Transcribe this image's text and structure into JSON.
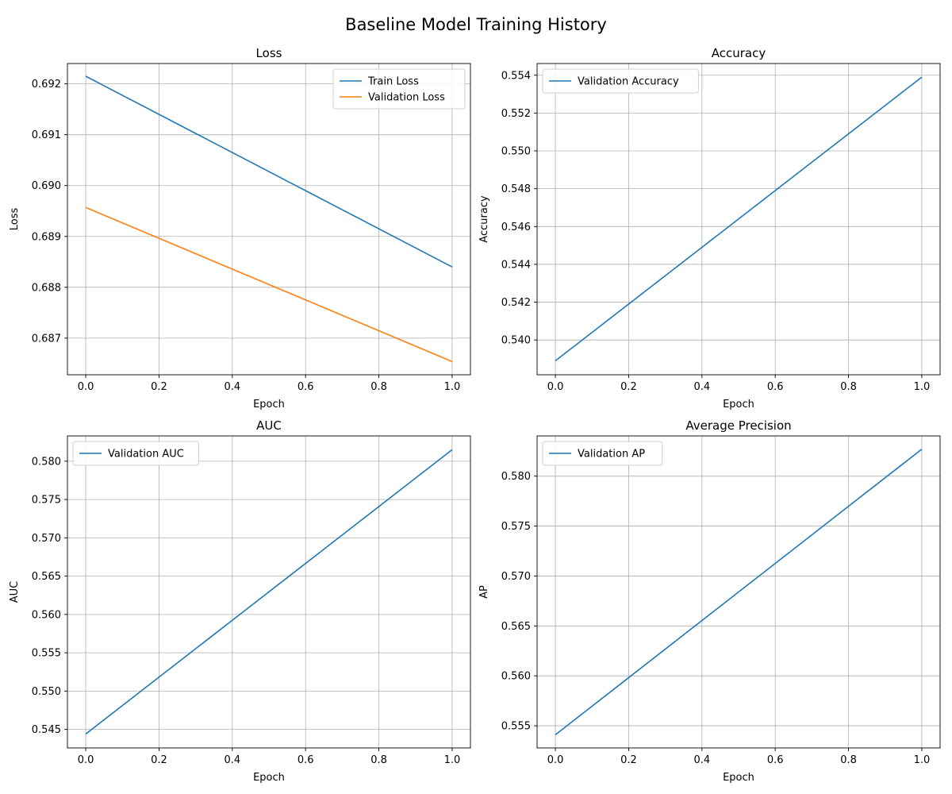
{
  "figure": {
    "suptitle": "Baseline Model Training History"
  },
  "chart_data": [
    {
      "type": "line",
      "title": "Loss",
      "xlabel": "Epoch",
      "ylabel": "Loss",
      "x": [
        0,
        1
      ],
      "xlim": [
        -0.05,
        1.05
      ],
      "ylim": [
        0.68628,
        0.6924
      ],
      "xticks": [
        "0.0",
        "0.2",
        "0.4",
        "0.6",
        "0.8",
        "1.0"
      ],
      "yticks": [
        "0.687",
        "0.688",
        "0.689",
        "0.690",
        "0.691",
        "0.692"
      ],
      "grid": true,
      "legend_position": "upper right",
      "series": [
        {
          "name": "Train Loss",
          "values": [
            0.69215,
            0.6884
          ],
          "color": "#1f77b4"
        },
        {
          "name": "Validation Loss",
          "values": [
            0.68957,
            0.68654
          ],
          "color": "#ff7f0e"
        }
      ]
    },
    {
      "type": "line",
      "title": "Accuracy",
      "xlabel": "Epoch",
      "ylabel": "Accuracy",
      "x": [
        0,
        1
      ],
      "xlim": [
        -0.05,
        1.05
      ],
      "ylim": [
        0.53816,
        0.55462
      ],
      "xticks": [
        "0.0",
        "0.2",
        "0.4",
        "0.6",
        "0.8",
        "1.0"
      ],
      "yticks": [
        "0.540",
        "0.542",
        "0.544",
        "0.546",
        "0.548",
        "0.550",
        "0.552",
        "0.554"
      ],
      "grid": true,
      "legend_position": "upper left",
      "series": [
        {
          "name": "Validation Accuracy",
          "values": [
            0.5389,
            0.5539
          ],
          "color": "#1f77b4"
        }
      ]
    },
    {
      "type": "line",
      "title": "AUC",
      "xlabel": "Epoch",
      "ylabel": "AUC",
      "x": [
        0,
        1
      ],
      "xlim": [
        -0.05,
        1.05
      ],
      "ylim": [
        0.54258,
        0.5833
      ],
      "xticks": [
        "0.0",
        "0.2",
        "0.4",
        "0.6",
        "0.8",
        "1.0"
      ],
      "yticks": [
        "0.545",
        "0.550",
        "0.555",
        "0.560",
        "0.565",
        "0.570",
        "0.575",
        "0.580"
      ],
      "grid": true,
      "legend_position": "upper left",
      "series": [
        {
          "name": "Validation AUC",
          "values": [
            0.5444,
            0.5815
          ],
          "color": "#1f77b4"
        }
      ]
    },
    {
      "type": "line",
      "title": "Average Precision",
      "xlabel": "Epoch",
      "ylabel": "AP",
      "x": [
        0,
        1
      ],
      "xlim": [
        -0.05,
        1.05
      ],
      "ylim": [
        0.55278,
        0.58403
      ],
      "xticks": [
        "0.0",
        "0.2",
        "0.4",
        "0.6",
        "0.8",
        "1.0"
      ],
      "yticks": [
        "0.555",
        "0.560",
        "0.565",
        "0.570",
        "0.575",
        "0.580"
      ],
      "grid": true,
      "legend_position": "upper left",
      "series": [
        {
          "name": "Validation AP",
          "values": [
            0.5541,
            0.5827
          ],
          "color": "#1f77b4"
        }
      ]
    }
  ]
}
